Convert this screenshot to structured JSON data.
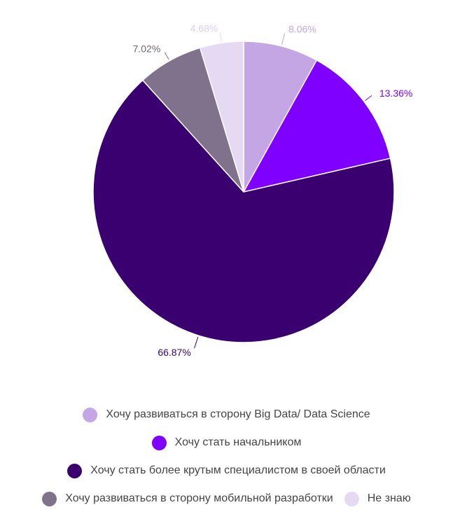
{
  "chart_data": {
    "type": "pie",
    "start_angle": "12 o'clock, clockwise",
    "slices": [
      {
        "label": "Хочу развиваться в сторону Big Data/ Data Science",
        "value": 8.06,
        "value_label": "8.06%",
        "color": "#c5a6e4",
        "label_color": "#c5a6e4"
      },
      {
        "label": "Хочу стать начальником",
        "value": 13.36,
        "value_label": "13.36%",
        "color": "#8000ff",
        "label_color": "#8000ff"
      },
      {
        "label": "Хочу стать более крутым специалистом в своей области",
        "value": 66.87,
        "value_label": "66.87%",
        "color": "#3b0070",
        "label_color": "#3b0070"
      },
      {
        "label": "Хочу развиваться в сторону мобильной разработки",
        "value": 7.02,
        "value_label": "7.02%",
        "color": "#80728c",
        "label_color": "#6f6478"
      },
      {
        "label": "Не знаю",
        "value": 4.68,
        "value_label": "4.68%",
        "color": "#e6d9f3",
        "label_color": "#ddd0ec"
      }
    ],
    "legend_position": "bottom"
  }
}
